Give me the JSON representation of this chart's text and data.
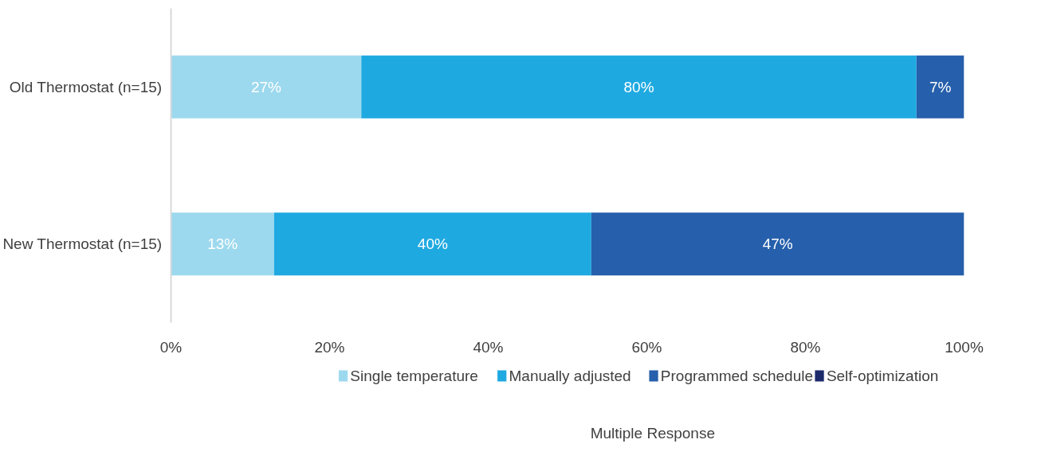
{
  "chart_data": {
    "type": "bar",
    "orientation": "horizontal",
    "stacked": true,
    "xlabel": "Multiple Response",
    "categories": [
      "Old Thermostat (n=15)",
      "New Thermostat (n=15)"
    ],
    "series": [
      {
        "name": "Single temperature",
        "color": "#9dd9ee",
        "values": [
          24,
          13
        ],
        "value_labels": [
          null,
          "13%"
        ]
      },
      {
        "name": "Manually adjusted",
        "color": "#1fa9e1",
        "values": [
          70,
          40
        ],
        "value_labels": [
          null,
          "40%"
        ]
      },
      {
        "name": "Programmed schedule",
        "color": "#265fab",
        "values": [
          6,
          47
        ],
        "value_labels": [
          null,
          "47%"
        ]
      },
      {
        "name": "Self-optimization",
        "color": "#1b2a6b",
        "values": [
          null,
          null
        ]
      }
    ],
    "annotations": [
      "27%",
      "80%",
      "7%"
    ],
    "grid": false,
    "xlim": [
      0,
      100
    ],
    "xticks": [
      {
        "value": 0,
        "label": "0%"
      },
      {
        "value": 20,
        "label": "20%"
      },
      {
        "value": 40,
        "label": "40%"
      },
      {
        "value": 60,
        "label": "60%"
      },
      {
        "value": 80,
        "label": "80%"
      },
      {
        "value": 100,
        "label": "100%"
      }
    ],
    "legend": "bottom"
  }
}
